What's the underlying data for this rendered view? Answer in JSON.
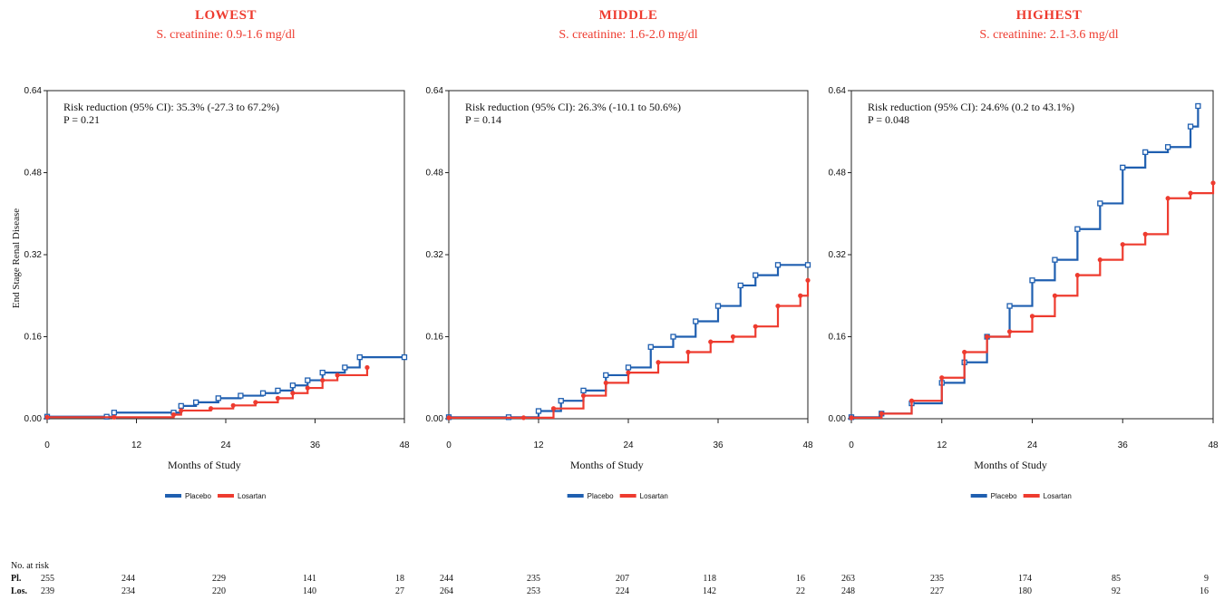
{
  "colors": {
    "placebo": "#1f5fb0",
    "losartan": "#ee3b2f",
    "title": "#ee3b2f"
  },
  "y_axis_label": "End Stage Renal Disease",
  "legend": {
    "placebo": "Placebo",
    "losartan": "Losartan"
  },
  "risk_table": {
    "header": "No. at risk",
    "row_labels": [
      "Pl.",
      "Los."
    ]
  },
  "chart_data": [
    {
      "type": "line",
      "title": "LOWEST",
      "subtitle": "S. creatinine: 0.9-1.6 mg/dl",
      "annotation": [
        "Risk reduction (95% CI): 35.3% (-27.3 to 67.2%)",
        "P = 0.21"
      ],
      "xlabel": "Months of Study",
      "ylabel": "End Stage Renal Disease",
      "xlim": [
        0,
        48
      ],
      "ylim": [
        0,
        0.64
      ],
      "x_ticks": [
        "0",
        "12",
        "24",
        "36",
        "48"
      ],
      "y_ticks": [
        "0.00",
        "0.16",
        "0.32",
        "0.48",
        "0.64"
      ],
      "series": [
        {
          "name": "Placebo",
          "x": [
            0,
            8,
            9,
            17,
            18,
            20,
            23,
            26,
            29,
            31,
            33,
            35,
            37,
            40,
            42,
            48
          ],
          "y": [
            0.004,
            0.004,
            0.012,
            0.012,
            0.025,
            0.032,
            0.04,
            0.045,
            0.05,
            0.055,
            0.065,
            0.075,
            0.09,
            0.1,
            0.12,
            0.12
          ]
        },
        {
          "name": "Losartan",
          "x": [
            0,
            9,
            17,
            18,
            22,
            25,
            28,
            31,
            33,
            35,
            37,
            39,
            43
          ],
          "y": [
            0.003,
            0.003,
            0.008,
            0.016,
            0.02,
            0.026,
            0.032,
            0.04,
            0.05,
            0.06,
            0.075,
            0.085,
            0.1
          ]
        }
      ],
      "at_risk": {
        "x": [
          0,
          12,
          24,
          36,
          48
        ],
        "placebo": [
          255,
          244,
          229,
          141,
          18
        ],
        "losartan": [
          239,
          234,
          220,
          140,
          27
        ]
      }
    },
    {
      "type": "line",
      "title": "MIDDLE",
      "subtitle": "S. creatinine: 1.6-2.0 mg/dl",
      "annotation": [
        "Risk reduction (95% CI): 26.3% (-10.1 to 50.6%)",
        "P = 0.14"
      ],
      "xlabel": "Months of Study",
      "ylabel": "",
      "xlim": [
        0,
        48
      ],
      "ylim": [
        0,
        0.64
      ],
      "x_ticks": [
        "0",
        "12",
        "24",
        "36",
        "48"
      ],
      "y_ticks": [
        "0.00",
        "0.16",
        "0.32",
        "0.48",
        "0.64"
      ],
      "series": [
        {
          "name": "Placebo",
          "x": [
            0,
            8,
            12,
            15,
            18,
            21,
            24,
            27,
            30,
            33,
            36,
            39,
            41,
            44,
            48
          ],
          "y": [
            0.003,
            0.003,
            0.015,
            0.035,
            0.055,
            0.085,
            0.1,
            0.14,
            0.16,
            0.19,
            0.22,
            0.26,
            0.28,
            0.3,
            0.3
          ]
        },
        {
          "name": "Losartan",
          "x": [
            0,
            10,
            14,
            18,
            21,
            24,
            28,
            32,
            35,
            38,
            41,
            44,
            47,
            48
          ],
          "y": [
            0.002,
            0.002,
            0.02,
            0.045,
            0.07,
            0.09,
            0.11,
            0.13,
            0.15,
            0.16,
            0.18,
            0.22,
            0.24,
            0.27
          ]
        }
      ],
      "at_risk": {
        "x": [
          0,
          12,
          24,
          36,
          48
        ],
        "placebo": [
          244,
          235,
          207,
          118,
          16
        ],
        "losartan": [
          264,
          253,
          224,
          142,
          22
        ]
      }
    },
    {
      "type": "line",
      "title": "HIGHEST",
      "subtitle": "S. creatinine: 2.1-3.6 mg/dl",
      "annotation": [
        "Risk reduction (95% CI): 24.6% (0.2 to 43.1%)",
        "P = 0.048"
      ],
      "xlabel": "Months of Study",
      "ylabel": "",
      "xlim": [
        0,
        48
      ],
      "ylim": [
        0,
        0.64
      ],
      "x_ticks": [
        "0",
        "12",
        "24",
        "36",
        "48"
      ],
      "y_ticks": [
        "0.00",
        "0.16",
        "0.32",
        "0.48",
        "0.64"
      ],
      "series": [
        {
          "name": "Placebo",
          "x": [
            0,
            4,
            8,
            12,
            15,
            18,
            21,
            24,
            27,
            30,
            33,
            36,
            39,
            42,
            45,
            46
          ],
          "y": [
            0.003,
            0.01,
            0.03,
            0.07,
            0.11,
            0.16,
            0.22,
            0.27,
            0.31,
            0.37,
            0.42,
            0.49,
            0.52,
            0.53,
            0.57,
            0.61
          ]
        },
        {
          "name": "Losartan",
          "x": [
            0,
            4,
            8,
            12,
            15,
            18,
            21,
            24,
            27,
            30,
            33,
            36,
            39,
            42,
            45,
            48
          ],
          "y": [
            0.002,
            0.01,
            0.035,
            0.08,
            0.13,
            0.16,
            0.17,
            0.2,
            0.24,
            0.28,
            0.31,
            0.34,
            0.36,
            0.43,
            0.44,
            0.46
          ]
        }
      ],
      "at_risk": {
        "x": [
          0,
          12,
          24,
          36,
          48
        ],
        "placebo": [
          263,
          235,
          174,
          85,
          9
        ],
        "losartan": [
          248,
          227,
          180,
          92,
          16
        ]
      }
    }
  ]
}
